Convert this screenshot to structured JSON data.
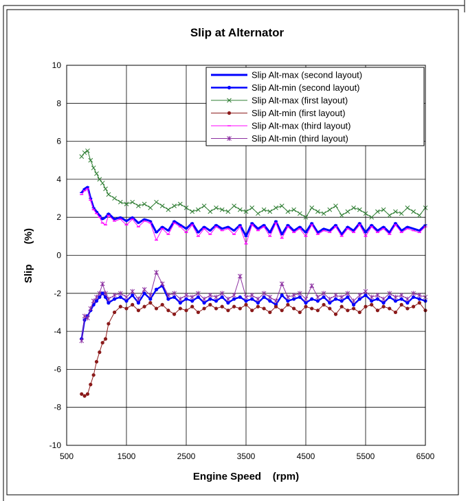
{
  "chart_data": {
    "type": "line",
    "title": "Slip at Alternator",
    "xlabel": "Engine Speed    (rpm)",
    "ylabel": "Slip       (%)",
    "xlim": [
      500,
      6500
    ],
    "ylim": [
      -10,
      10
    ],
    "x_ticks": [
      500,
      1500,
      2500,
      3500,
      4500,
      5500,
      6500
    ],
    "y_ticks": [
      -10,
      -8,
      -6,
      -4,
      -2,
      0,
      2,
      4,
      6,
      8,
      10
    ],
    "grid": true,
    "legend_position": "top-right",
    "series": [
      {
        "name": "Slip Alt-max (second layout)",
        "color": "#0000ff",
        "marker": "dash",
        "x": [
          750,
          800,
          850,
          900,
          950,
          1000,
          1050,
          1100,
          1150,
          1200,
          1300,
          1400,
          1500,
          1600,
          1700,
          1800,
          1900,
          2000,
          2100,
          2200,
          2300,
          2400,
          2500,
          2600,
          2700,
          2800,
          2900,
          3000,
          3100,
          3200,
          3300,
          3400,
          3500,
          3600,
          3700,
          3800,
          3900,
          4000,
          4100,
          4200,
          4300,
          4400,
          4500,
          4600,
          4700,
          4800,
          4900,
          5000,
          5100,
          5200,
          5300,
          5400,
          5500,
          5600,
          5700,
          5800,
          5900,
          6000,
          6100,
          6200,
          6300,
          6400,
          6500
        ],
        "values": [
          3.3,
          3.5,
          3.6,
          3.0,
          2.5,
          2.3,
          2.1,
          1.9,
          2.0,
          2.2,
          1.9,
          2.0,
          1.8,
          2.0,
          1.7,
          1.9,
          1.8,
          1.2,
          1.5,
          1.3,
          1.8,
          1.6,
          1.4,
          1.7,
          1.2,
          1.5,
          1.3,
          1.6,
          1.4,
          1.5,
          1.3,
          1.6,
          1.0,
          1.7,
          1.4,
          1.6,
          1.2,
          1.8,
          1.1,
          1.6,
          1.3,
          1.5,
          1.2,
          1.7,
          1.2,
          1.4,
          1.3,
          1.6,
          1.1,
          1.5,
          1.3,
          1.7,
          1.2,
          1.6,
          1.3,
          1.5,
          1.2,
          1.7,
          1.3,
          1.5,
          1.4,
          1.3,
          1.6
        ]
      },
      {
        "name": "Slip Alt-min (second layout)",
        "color": "#0000ff",
        "marker": "dot",
        "x": [
          750,
          800,
          850,
          900,
          950,
          1000,
          1050,
          1100,
          1150,
          1200,
          1300,
          1400,
          1500,
          1600,
          1700,
          1800,
          1900,
          2000,
          2100,
          2200,
          2300,
          2400,
          2500,
          2600,
          2700,
          2800,
          2900,
          3000,
          3100,
          3200,
          3300,
          3400,
          3500,
          3600,
          3700,
          3800,
          3900,
          4000,
          4100,
          4200,
          4300,
          4400,
          4500,
          4600,
          4700,
          4800,
          4900,
          5000,
          5100,
          5200,
          5300,
          5400,
          5500,
          5600,
          5700,
          5800,
          5900,
          6000,
          6100,
          6200,
          6300,
          6400,
          6500
        ],
        "values": [
          -4.4,
          -3.4,
          -3.2,
          -2.9,
          -2.6,
          -2.4,
          -2.2,
          -2.0,
          -2.2,
          -2.5,
          -2.3,
          -2.2,
          -2.4,
          -2.1,
          -2.5,
          -2.0,
          -2.3,
          -1.8,
          -1.6,
          -2.3,
          -2.2,
          -2.5,
          -2.3,
          -2.4,
          -2.2,
          -2.5,
          -2.3,
          -2.4,
          -2.2,
          -2.5,
          -2.3,
          -2.2,
          -2.4,
          -2.3,
          -2.5,
          -2.2,
          -2.4,
          -2.6,
          -2.1,
          -2.4,
          -2.3,
          -2.2,
          -2.5,
          -2.3,
          -2.4,
          -2.2,
          -2.5,
          -2.3,
          -2.4,
          -2.2,
          -2.6,
          -2.3,
          -2.1,
          -2.4,
          -2.3,
          -2.5,
          -2.2,
          -2.4,
          -2.3,
          -2.5,
          -2.2,
          -2.3,
          -2.4
        ]
      },
      {
        "name": "Slip Alt-max (first layout)",
        "color": "#2e7d32",
        "marker": "x",
        "x": [
          750,
          800,
          850,
          900,
          950,
          1000,
          1050,
          1100,
          1150,
          1200,
          1300,
          1400,
          1500,
          1600,
          1700,
          1800,
          1900,
          2000,
          2100,
          2200,
          2300,
          2400,
          2500,
          2600,
          2700,
          2800,
          2900,
          3000,
          3100,
          3200,
          3300,
          3400,
          3500,
          3600,
          3700,
          3800,
          3900,
          4000,
          4100,
          4200,
          4300,
          4400,
          4500,
          4600,
          4700,
          4800,
          4900,
          5000,
          5100,
          5200,
          5300,
          5400,
          5500,
          5600,
          5700,
          5800,
          5900,
          6000,
          6100,
          6200,
          6300,
          6400,
          6500
        ],
        "values": [
          5.2,
          5.4,
          5.5,
          5.0,
          4.6,
          4.3,
          4.0,
          3.8,
          3.5,
          3.2,
          3.0,
          2.8,
          2.7,
          2.8,
          2.6,
          2.7,
          2.5,
          2.8,
          2.6,
          2.4,
          2.6,
          2.7,
          2.5,
          2.3,
          2.4,
          2.6,
          2.3,
          2.5,
          2.4,
          2.3,
          2.6,
          2.4,
          2.3,
          2.5,
          2.2,
          2.4,
          2.3,
          2.5,
          2.6,
          2.3,
          2.4,
          2.2,
          2.0,
          2.5,
          2.3,
          2.2,
          2.4,
          2.6,
          2.1,
          2.3,
          2.5,
          2.4,
          2.2,
          2.0,
          2.3,
          2.4,
          2.1,
          2.3,
          2.2,
          2.5,
          2.3,
          2.1,
          2.5
        ]
      },
      {
        "name": "Slip Alt-min (first layout)",
        "color": "#8b1a1a",
        "marker": "dot",
        "x": [
          750,
          800,
          850,
          900,
          950,
          1000,
          1050,
          1100,
          1150,
          1200,
          1300,
          1400,
          1500,
          1600,
          1700,
          1800,
          1900,
          2000,
          2100,
          2200,
          2300,
          2400,
          2500,
          2600,
          2700,
          2800,
          2900,
          3000,
          3100,
          3200,
          3300,
          3400,
          3500,
          3600,
          3700,
          3800,
          3900,
          4000,
          4100,
          4200,
          4300,
          4400,
          4500,
          4600,
          4700,
          4800,
          4900,
          5000,
          5100,
          5200,
          5300,
          5400,
          5500,
          5600,
          5700,
          5800,
          5900,
          6000,
          6100,
          6200,
          6300,
          6400,
          6500
        ],
        "values": [
          -7.3,
          -7.4,
          -7.3,
          -6.8,
          -6.3,
          -5.6,
          -5.1,
          -4.6,
          -4.4,
          -3.6,
          -3.0,
          -2.7,
          -2.8,
          -2.6,
          -2.9,
          -2.7,
          -2.5,
          -2.8,
          -2.6,
          -2.9,
          -3.1,
          -2.8,
          -2.9,
          -2.7,
          -3.0,
          -2.8,
          -2.6,
          -2.8,
          -2.7,
          -2.9,
          -2.7,
          -2.8,
          -2.6,
          -2.9,
          -2.7,
          -2.8,
          -3.0,
          -2.7,
          -2.9,
          -2.6,
          -2.8,
          -3.0,
          -2.7,
          -2.8,
          -2.9,
          -2.6,
          -2.8,
          -3.1,
          -2.7,
          -2.9,
          -2.8,
          -3.0,
          -2.7,
          -2.6,
          -2.9,
          -2.7,
          -2.8,
          -3.0,
          -2.6,
          -2.8,
          -2.7,
          -2.5,
          -2.9
        ]
      },
      {
        "name": "Slip Alt-max (third layout)",
        "color": "#ff00ff",
        "marker": "dash",
        "x": [
          750,
          800,
          850,
          900,
          950,
          1000,
          1050,
          1100,
          1150,
          1200,
          1300,
          1400,
          1500,
          1600,
          1700,
          1800,
          1900,
          2000,
          2100,
          2200,
          2300,
          2400,
          2500,
          2600,
          2700,
          2800,
          2900,
          3000,
          3100,
          3200,
          3300,
          3400,
          3500,
          3600,
          3700,
          3800,
          3900,
          4000,
          4100,
          4200,
          4300,
          4400,
          4500,
          4600,
          4700,
          4800,
          4900,
          5000,
          5100,
          5200,
          5300,
          5400,
          5500,
          5600,
          5700,
          5800,
          5900,
          6000,
          6100,
          6200,
          6300,
          6400,
          6500
        ],
        "values": [
          3.2,
          3.4,
          3.5,
          2.9,
          2.4,
          2.2,
          2.0,
          1.7,
          1.6,
          2.1,
          1.8,
          1.9,
          1.6,
          1.9,
          1.5,
          1.8,
          1.7,
          0.8,
          1.4,
          1.1,
          1.7,
          1.5,
          1.2,
          1.6,
          1.0,
          1.4,
          1.1,
          1.5,
          1.3,
          1.4,
          1.1,
          1.5,
          0.6,
          1.6,
          1.3,
          1.5,
          1.0,
          1.7,
          0.9,
          1.5,
          1.2,
          1.4,
          1.0,
          1.6,
          1.1,
          1.3,
          1.2,
          1.5,
          1.0,
          1.4,
          1.2,
          1.6,
          1.0,
          1.5,
          1.2,
          1.4,
          1.1,
          1.6,
          1.2,
          1.4,
          1.3,
          1.2,
          1.5
        ]
      },
      {
        "name": "Slip Alt-min (third layout)",
        "color": "#8b2fa0",
        "marker": "star",
        "x": [
          750,
          800,
          850,
          900,
          950,
          1000,
          1050,
          1100,
          1150,
          1200,
          1300,
          1400,
          1500,
          1600,
          1700,
          1800,
          1900,
          2000,
          2100,
          2200,
          2300,
          2400,
          2500,
          2600,
          2700,
          2800,
          2900,
          3000,
          3100,
          3200,
          3300,
          3400,
          3500,
          3600,
          3700,
          3800,
          3900,
          4000,
          4100,
          4200,
          4300,
          4400,
          4500,
          4600,
          4700,
          4800,
          4900,
          5000,
          5100,
          5200,
          5300,
          5400,
          5500,
          5600,
          5700,
          5800,
          5900,
          6000,
          6100,
          6200,
          6300,
          6400,
          6500
        ],
        "values": [
          -4.5,
          -3.2,
          -3.3,
          -2.8,
          -2.4,
          -2.2,
          -2.0,
          -1.5,
          -2.0,
          -2.3,
          -2.1,
          -2.0,
          -2.2,
          -1.9,
          -2.3,
          -1.8,
          -2.1,
          -0.9,
          -1.5,
          -2.1,
          -2.0,
          -2.3,
          -2.1,
          -2.2,
          -2.0,
          -2.3,
          -2.1,
          -2.2,
          -2.0,
          -2.3,
          -2.1,
          -1.1,
          -2.2,
          -2.1,
          -2.3,
          -2.0,
          -2.2,
          -2.4,
          -1.5,
          -2.2,
          -2.1,
          -2.0,
          -2.3,
          -1.6,
          -2.2,
          -2.0,
          -2.3,
          -2.1,
          -2.2,
          -2.0,
          -2.4,
          -2.1,
          -1.9,
          -2.2,
          -2.1,
          -2.3,
          -2.0,
          -2.2,
          -2.1,
          -2.3,
          -2.0,
          -2.1,
          -2.2
        ]
      }
    ]
  }
}
